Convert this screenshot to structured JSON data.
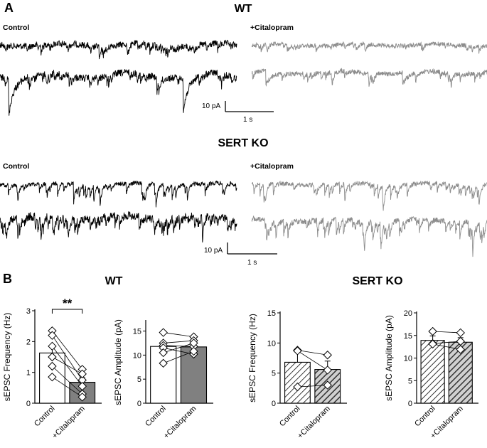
{
  "panel_a": {
    "letter": "A",
    "wt_title": "WT",
    "sert_title": "SERT KO",
    "control_label": "Control",
    "citalopram_label": "+Citalopram",
    "scale_y_label": "10 pA",
    "scale_x_label": "1 s"
  },
  "panel_b": {
    "letter": "B",
    "wt_title": "WT",
    "sert_title": "SERT KO",
    "significance": "**"
  },
  "colors": {
    "control_trace": "#000000",
    "citalopram_trace": "#8c8c8c",
    "citalopram_bar": "#808080",
    "sert_citalopram_bar": "#555555"
  },
  "chart_data": [
    {
      "type": "bar",
      "group": "WT",
      "ylabel": "sEPSC Frequency (Hz)",
      "categories": [
        "Control",
        "+Citalopram"
      ],
      "values": [
        1.63,
        0.68
      ],
      "errors": [
        0.25,
        0.15
      ],
      "ylim": [
        0,
        3
      ],
      "yticks": [
        0,
        1,
        2,
        3
      ],
      "bar_style": [
        "white",
        "gray"
      ],
      "paired_points": [
        [
          2.35,
          1.1
        ],
        [
          2.2,
          0.75
        ],
        [
          1.85,
          0.55
        ],
        [
          1.5,
          0.95
        ],
        [
          1.2,
          0.3
        ],
        [
          0.85,
          0.2
        ]
      ],
      "significance": "**"
    },
    {
      "type": "bar",
      "group": "WT",
      "ylabel": "sEPSC Amplitude (pA)",
      "categories": [
        "Control",
        "+Citalopram"
      ],
      "values": [
        11.8,
        11.7
      ],
      "errors": [
        0.8,
        0.7
      ],
      "ylim": [
        0,
        17
      ],
      "yticks": [
        0,
        5,
        10,
        15
      ],
      "bar_style": [
        "white",
        "gray"
      ],
      "paired_points": [
        [
          14.7,
          13.8
        ],
        [
          12.5,
          13.0
        ],
        [
          12.0,
          11.8
        ],
        [
          11.5,
          10.2
        ],
        [
          10.5,
          12.5
        ],
        [
          8.3,
          10.8
        ]
      ]
    },
    {
      "type": "bar",
      "group": "SERT KO",
      "ylabel": "sEPSC Frequency (Hz)",
      "categories": [
        "Control",
        "+Citalopram"
      ],
      "values": [
        6.8,
        5.6
      ],
      "errors": [
        2.0,
        1.4
      ],
      "ylim": [
        0,
        15
      ],
      "yticks": [
        0,
        5,
        10,
        15
      ],
      "bar_style": [
        "hatched-white",
        "hatched-dark"
      ],
      "paired_points": [
        [
          8.8,
          8.0
        ],
        [
          8.7,
          5.5
        ],
        [
          2.7,
          3.0
        ]
      ]
    },
    {
      "type": "bar",
      "group": "SERT KO",
      "ylabel": "sEPSC Amplitude (pA)",
      "categories": [
        "Control",
        "+Citalopram"
      ],
      "values": [
        13.9,
        13.5
      ],
      "errors": [
        1.0,
        1.0
      ],
      "ylim": [
        0,
        20
      ],
      "yticks": [
        0,
        5,
        10,
        15,
        20
      ],
      "bar_style": [
        "hatched-white",
        "hatched-dark"
      ],
      "paired_points": [
        [
          15.9,
          15.6
        ],
        [
          13.2,
          13.7
        ],
        [
          13.1,
          11.9
        ]
      ]
    }
  ]
}
